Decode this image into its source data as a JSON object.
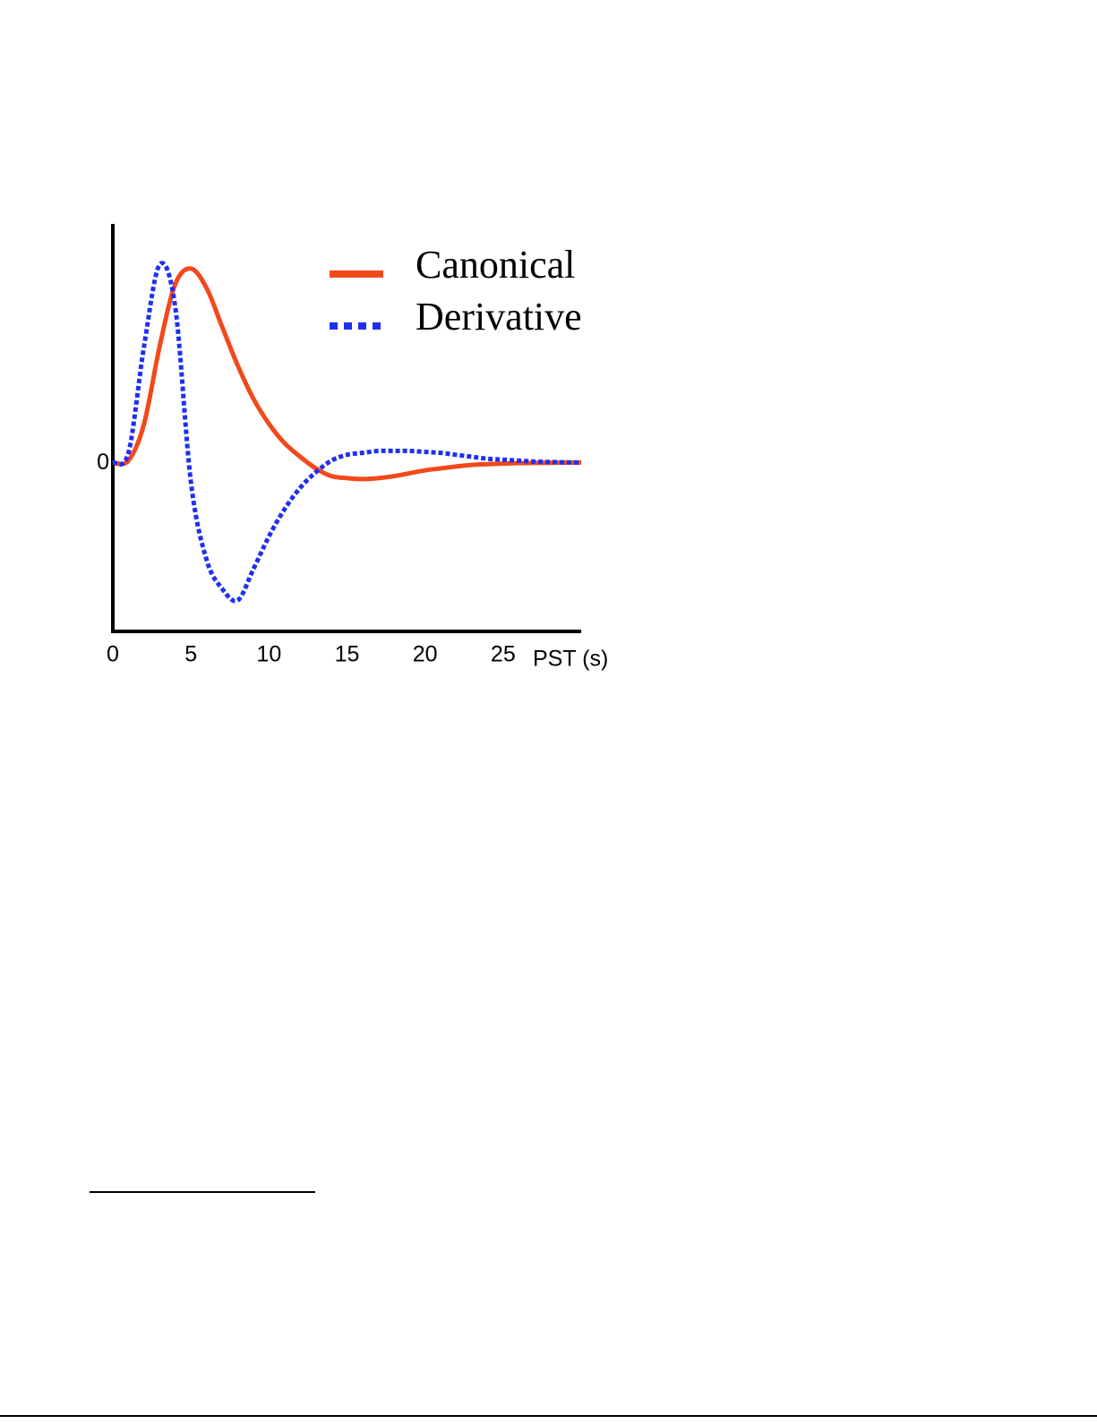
{
  "chart_data": {
    "type": "line",
    "x": [
      0,
      1,
      2,
      3,
      4,
      5,
      6,
      7,
      8,
      9,
      10,
      11,
      12,
      13,
      14,
      15,
      16,
      17,
      18,
      19,
      20,
      21,
      22,
      23,
      24,
      25,
      26,
      27,
      28,
      29,
      30
    ],
    "series": [
      {
        "name": "Canonical",
        "color": "#f2491b",
        "linestyle": "solid",
        "values": [
          0,
          0.01,
          0.2,
          0.6,
          0.92,
          1.0,
          0.9,
          0.7,
          0.5,
          0.33,
          0.2,
          0.1,
          0.03,
          -0.03,
          -0.07,
          -0.08,
          -0.085,
          -0.08,
          -0.07,
          -0.055,
          -0.04,
          -0.03,
          -0.02,
          -0.012,
          -0.008,
          -0.005,
          -0.003,
          -0.002,
          -0.001,
          0,
          0
        ]
      },
      {
        "name": "Derivative",
        "color": "#1f2ff2",
        "linestyle": "dotted",
        "values": [
          0,
          0.05,
          0.6,
          1.02,
          0.8,
          -0.1,
          -0.5,
          -0.65,
          -0.71,
          -0.55,
          -0.38,
          -0.24,
          -0.13,
          -0.05,
          0.01,
          0.04,
          0.05,
          0.06,
          0.06,
          0.06,
          0.055,
          0.05,
          0.04,
          0.03,
          0.02,
          0.015,
          0.01,
          0.005,
          0.003,
          0.001,
          0
        ]
      }
    ],
    "xlim": [
      0,
      30
    ],
    "xticks": [
      0,
      5,
      10,
      15,
      20,
      25
    ],
    "xlabel": "PST (s)",
    "ylim": [
      -0.87,
      1.23
    ],
    "yticks": [
      0
    ],
    "legend": "top-right"
  }
}
